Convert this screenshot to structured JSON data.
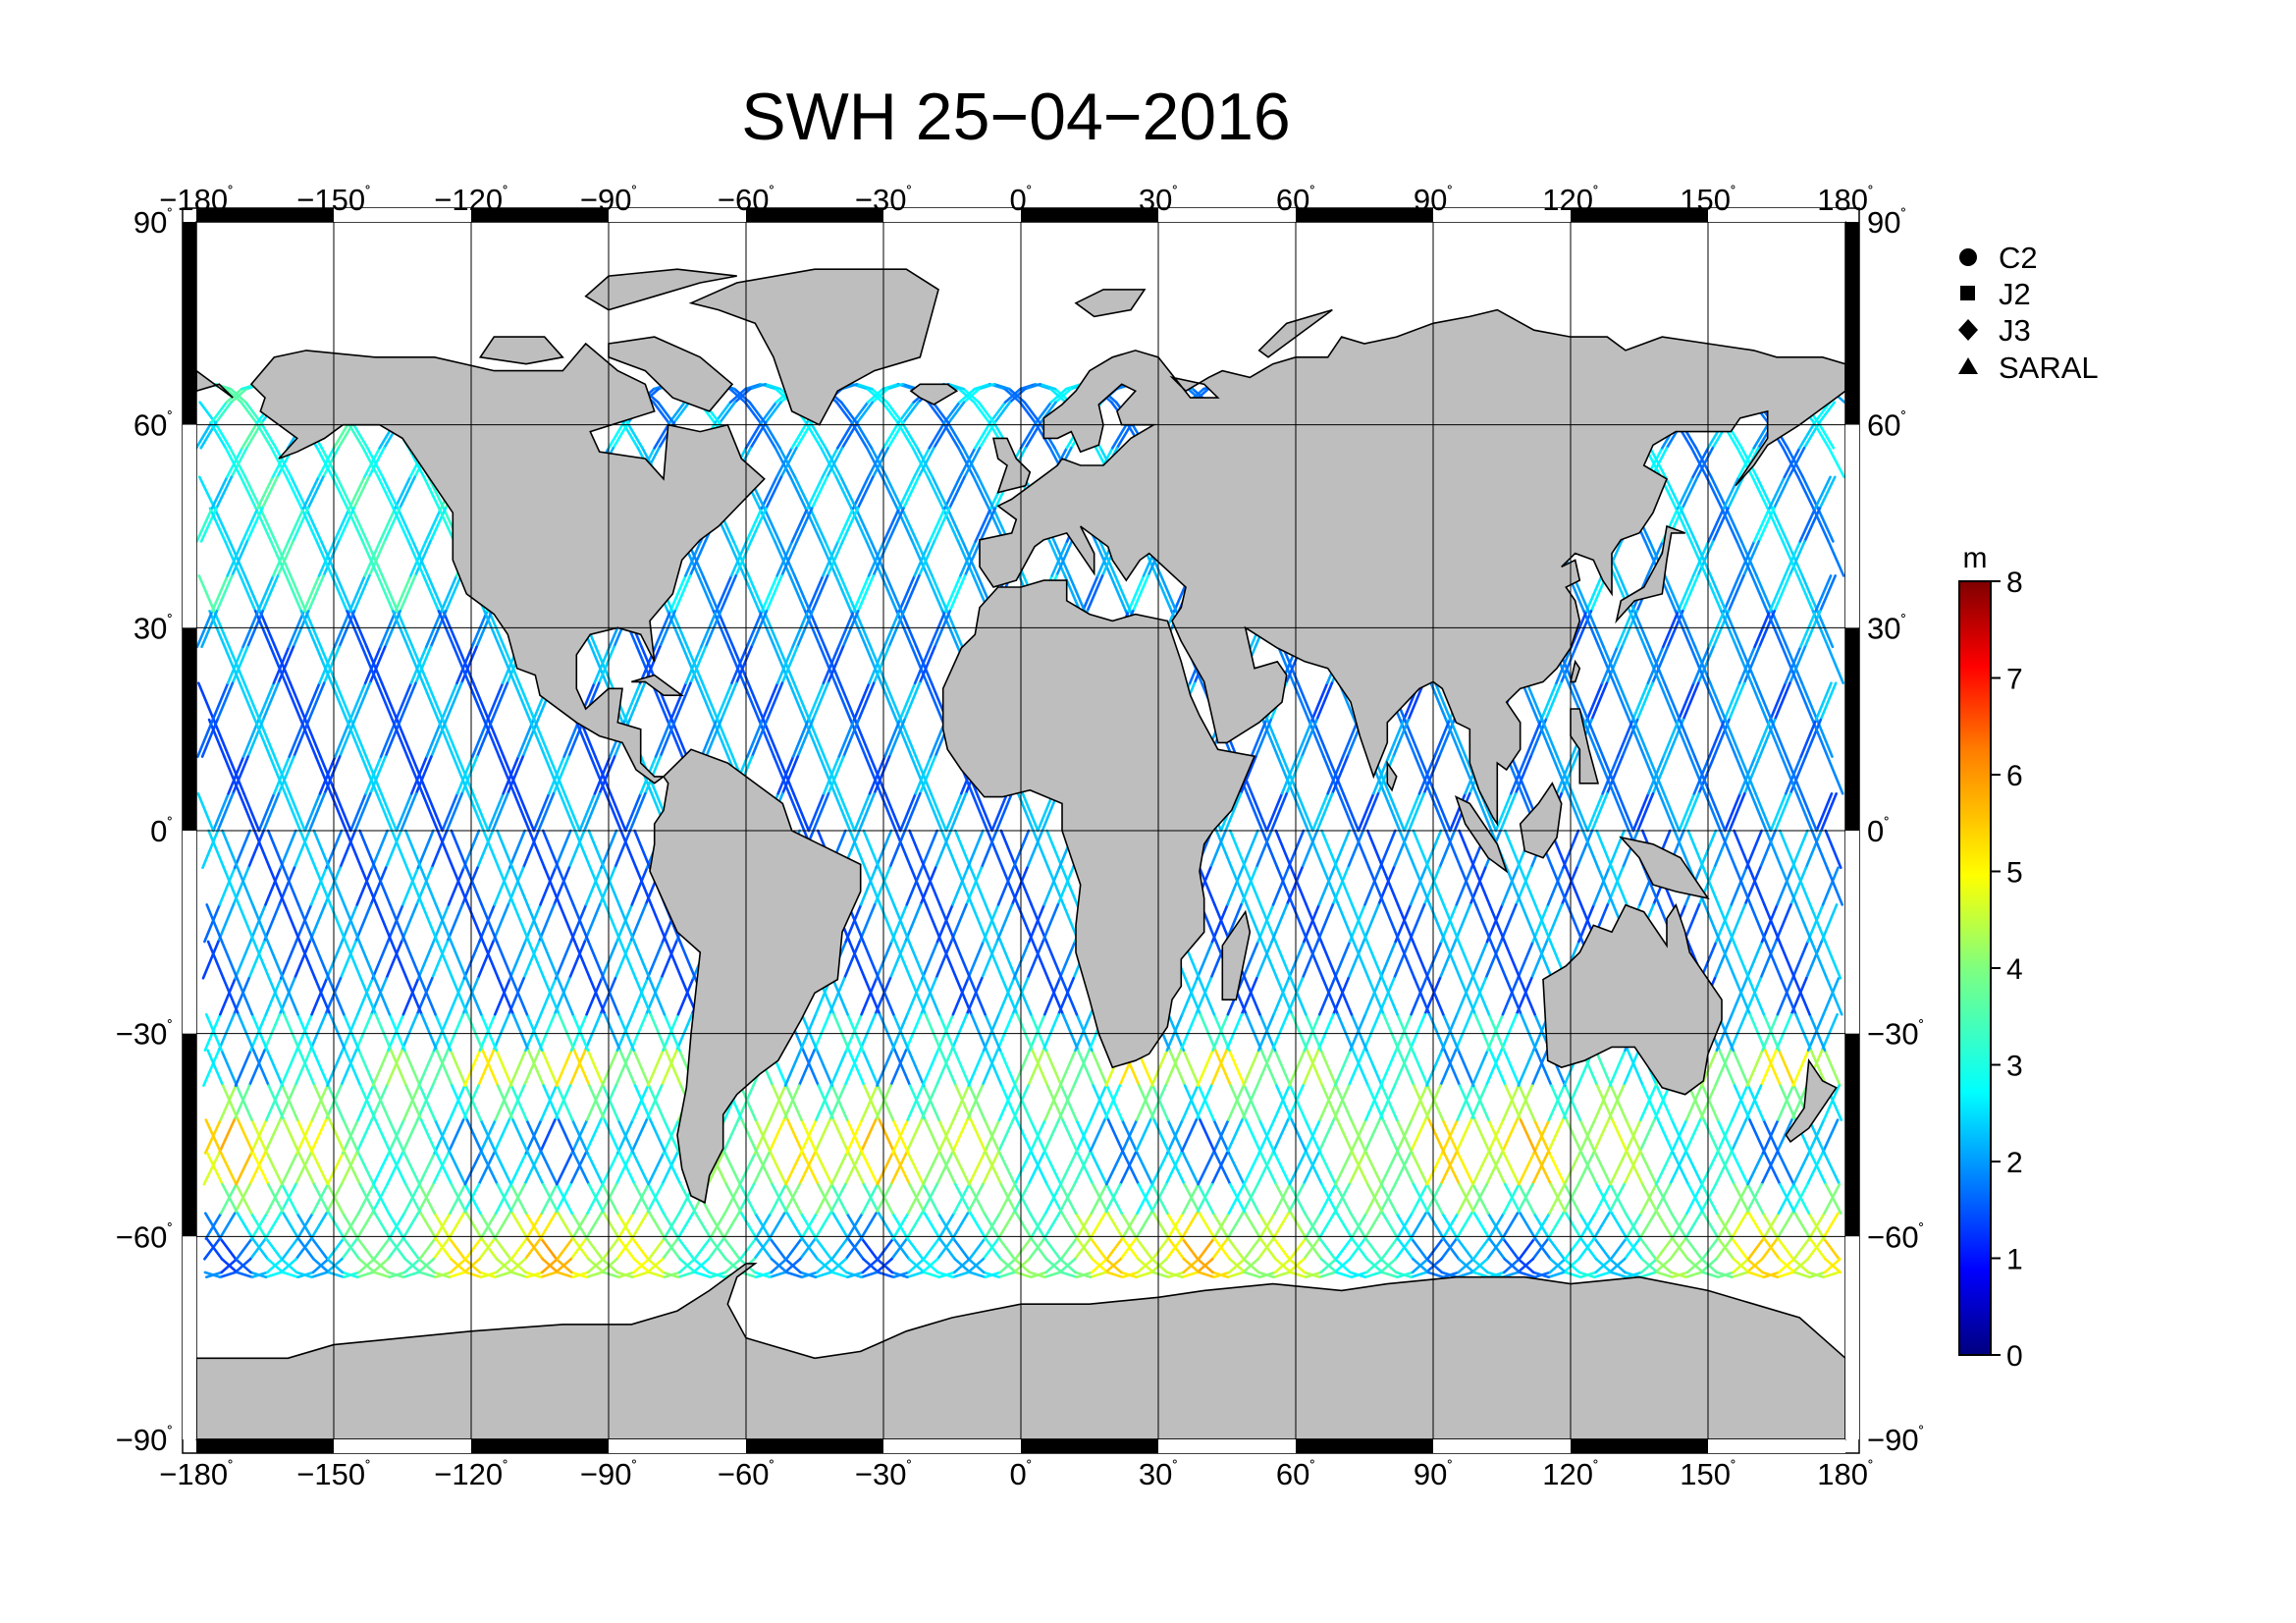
{
  "title": "SWH 25−04−2016",
  "map": {
    "projection": "equirectangular",
    "lon_range": [
      -180,
      180
    ],
    "lat_range": [
      -90,
      90
    ],
    "lon_ticks": [
      "−180",
      "−150",
      "−120",
      "−90",
      "−60",
      "−30",
      "0",
      "30",
      "60",
      "90",
      "120",
      "150",
      "180"
    ],
    "lat_ticks": [
      "90",
      "60",
      "30",
      "0",
      "−30",
      "−60",
      "−90"
    ],
    "degree_symbol": "˚",
    "grid": true,
    "land_color": "#bebebe",
    "ocean_color": "#ffffff",
    "coastline_color": "#000000"
  },
  "legend": {
    "placement": "right-top",
    "items": [
      {
        "label": "C2",
        "marker": "circle"
      },
      {
        "label": "J2",
        "marker": "square"
      },
      {
        "label": "J3",
        "marker": "diamond"
      },
      {
        "label": "SARAL",
        "marker": "triangle"
      }
    ]
  },
  "colorbar": {
    "unit": "m",
    "min": 0,
    "max": 8,
    "ticks": [
      "8",
      "7",
      "6",
      "5",
      "4",
      "3",
      "2",
      "1",
      "0"
    ],
    "colormap": "jet",
    "colors": [
      "#00007f",
      "#0000ff",
      "#007fff",
      "#00ffff",
      "#7fff7f",
      "#ffff00",
      "#ff7f00",
      "#ff0000",
      "#7f0000"
    ]
  }
}
